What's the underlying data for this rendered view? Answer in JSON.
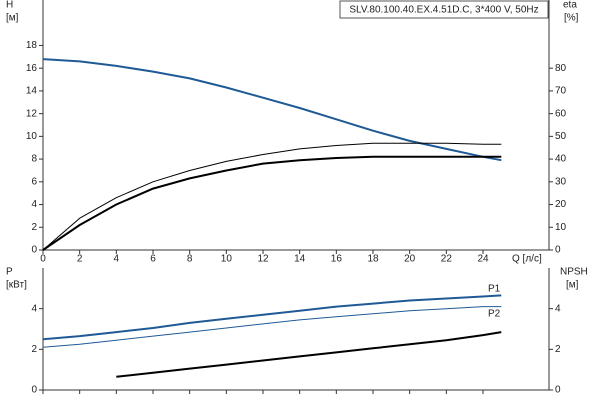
{
  "chart_data": [
    {
      "type": "line",
      "title": "SLV.80.100.40.EX.4.51D.C, 3*400 V, 50Hz",
      "ylabel": "H",
      "yunit": "[м]",
      "y2label": "eta",
      "y2unit": "[%]",
      "xlabel": "Q [л/с]",
      "x": [
        0,
        2,
        4,
        6,
        8,
        10,
        12,
        14,
        16,
        18,
        20,
        22,
        24,
        25
      ],
      "xlim": [
        0,
        27.6
      ],
      "xticks": [
        0,
        2,
        4,
        6,
        8,
        10,
        12,
        14,
        16,
        18,
        20,
        22,
        24
      ],
      "ylim": [
        0,
        22
      ],
      "yticks": [
        0,
        2,
        4,
        6,
        8,
        10,
        12,
        14,
        16,
        18
      ],
      "y2lim": [
        0,
        110
      ],
      "y2ticks": [
        0,
        10,
        20,
        30,
        40,
        50,
        60,
        70,
        80
      ],
      "series": [
        {
          "color": "#1f5a96",
          "width": 2,
          "values": [
            16.8,
            16.6,
            16.2,
            15.7,
            15.1,
            14.3,
            13.4,
            12.5,
            11.5,
            10.5,
            9.6,
            8.9,
            8.2,
            7.9
          ]
        },
        {
          "color": "#000000",
          "width": 1,
          "axis": "y2",
          "values": [
            0,
            14,
            23,
            30,
            35,
            39,
            42,
            44.5,
            46,
            47,
            47,
            47,
            46.5,
            46.5
          ]
        },
        {
          "color": "#000000",
          "width": 2,
          "axis": "y2",
          "values": [
            0,
            11,
            20,
            27,
            31.5,
            35,
            38,
            39.5,
            40.5,
            41,
            41,
            41,
            41,
            41
          ]
        }
      ]
    },
    {
      "type": "line",
      "ylabel": "P",
      "yunit": "[кВт]",
      "y2label": "NPSH",
      "y2unit": "[м]",
      "x": [
        0,
        2,
        4,
        6,
        8,
        10,
        12,
        14,
        16,
        18,
        20,
        22,
        24,
        25
      ],
      "xlim": [
        0,
        27.6
      ],
      "ylim": [
        0,
        6
      ],
      "yticks": [
        0,
        2,
        4
      ],
      "y2lim": [
        0,
        6
      ],
      "y2ticks": [
        0,
        2,
        4
      ],
      "series": [
        {
          "name": "P1",
          "color": "#1f5a96",
          "width": 2,
          "values": [
            2.5,
            2.65,
            2.85,
            3.05,
            3.3,
            3.5,
            3.7,
            3.9,
            4.1,
            4.25,
            4.4,
            4.5,
            4.6,
            4.65
          ]
        },
        {
          "name": "P2",
          "color": "#1f5a96",
          "width": 1,
          "values": [
            2.1,
            2.25,
            2.45,
            2.65,
            2.85,
            3.05,
            3.25,
            3.45,
            3.6,
            3.75,
            3.9,
            4.0,
            4.1,
            4.1
          ]
        },
        {
          "color": "#000000",
          "width": 2,
          "axis": "y2",
          "values": [
            null,
            null,
            0.65,
            0.85,
            1.05,
            1.25,
            1.45,
            1.65,
            1.85,
            2.05,
            2.25,
            2.45,
            2.7,
            2.85
          ]
        }
      ]
    }
  ]
}
